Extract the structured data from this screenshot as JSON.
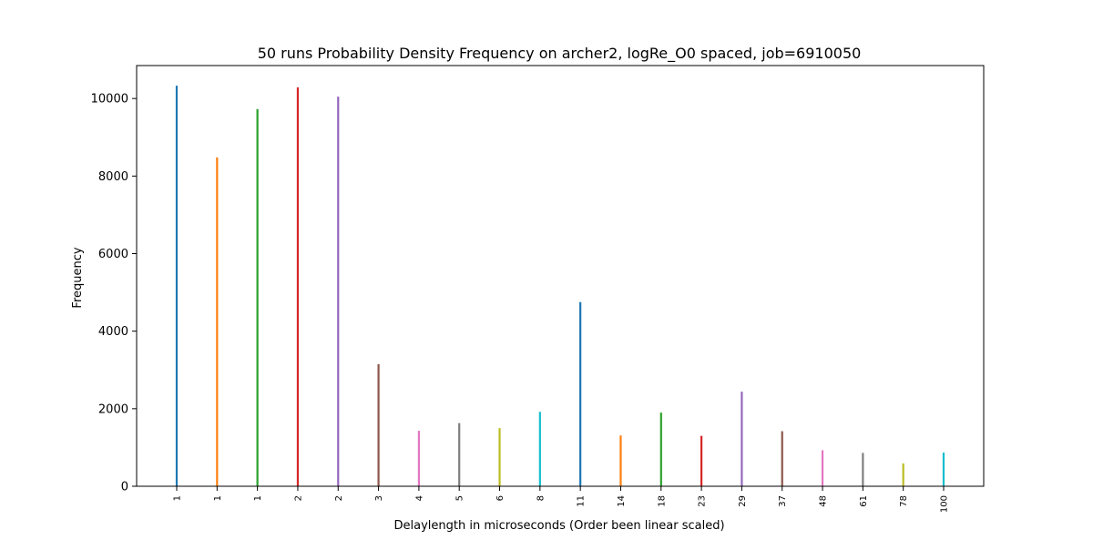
{
  "chart_data": {
    "type": "bar",
    "title": "50 runs Probability Density Frequency on archer2, logRe_O0 spaced, job=6910050",
    "xlabel": "Delaylength in microseconds (Order been linear scaled)",
    "ylabel": "Frequency",
    "categories": [
      "1",
      "1",
      "1",
      "2",
      "2",
      "3",
      "4",
      "5",
      "6",
      "8",
      "11",
      "14",
      "18",
      "23",
      "29",
      "37",
      "48",
      "61",
      "78",
      "100"
    ],
    "values": [
      10330,
      8480,
      9730,
      10290,
      10050,
      3150,
      1430,
      1630,
      1500,
      1920,
      4750,
      1310,
      1900,
      1300,
      2440,
      1420,
      930,
      860,
      590,
      870
    ],
    "colors": [
      "#1f77b4",
      "#ff7f0e",
      "#2ca02c",
      "#d62728",
      "#9467bd",
      "#8c564b",
      "#e377c2",
      "#7f7f7f",
      "#bcbd22",
      "#17becf",
      "#1f77b4",
      "#ff7f0e",
      "#2ca02c",
      "#d62728",
      "#9467bd",
      "#8c564b",
      "#e377c2",
      "#7f7f7f",
      "#bcbd22",
      "#17becf"
    ],
    "yticks": [
      0,
      2000,
      4000,
      6000,
      8000,
      10000
    ],
    "ylim": [
      0,
      10850
    ],
    "grid": false,
    "legend": false
  }
}
